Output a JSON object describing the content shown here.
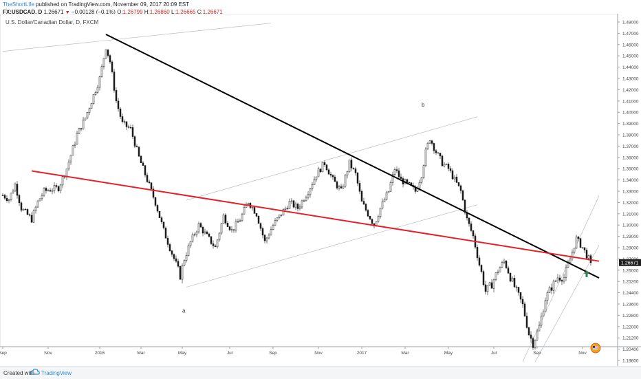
{
  "header": {
    "author": "TheShortLife",
    "published": "published on TradingView.com, November 09, 2017 20:09 EST",
    "symbol": "FX:USDCAD, D",
    "last": "1.26671",
    "change": "−0.00128 (−0.1%)",
    "o_label": "O:",
    "o_value": "1.26799",
    "h_label": "H:",
    "h_value": "1.26860",
    "l_label": "L:",
    "l_value": "1.26665",
    "c_label": "C:",
    "c_value": "1.26671"
  },
  "footer": {
    "created": "Created with",
    "brand": "TradingView"
  },
  "colors": {
    "trend_black": "#000000",
    "trend_red": "#e5202a",
    "channel": "#b8bcc3",
    "candle": "#1a1a1a",
    "arrow": "#2e7d4f",
    "last_price_bg": "#1f1f1f"
  },
  "chart_data": {
    "type": "candlestick",
    "title": "U.S. Dollar/Canadian Dollar, D, FXCM",
    "x_ticks": [
      "Sep",
      "Nov",
      "2016",
      "Mar",
      "May",
      "Jul",
      "Sep",
      "Nov",
      "2017",
      "Mar",
      "May",
      "Jul",
      "Sep",
      "Nov"
    ],
    "y_ticks": [
      "1.48000",
      "1.47000",
      "1.46000",
      "1.45000",
      "1.44000",
      "1.43000",
      "1.42000",
      "1.41000",
      "1.40000",
      "1.39000",
      "1.38000",
      "1.37000",
      "1.36000",
      "1.35000",
      "1.34000",
      "1.33000",
      "1.32000",
      "1.31000",
      "1.30000",
      "1.29000",
      "1.28000",
      "1.27000",
      "1.26000",
      "1.25200",
      "1.24400",
      "1.23600",
      "1.22800",
      "1.22000",
      "1.21200",
      "1.20400",
      "1.19600"
    ],
    "last_price": "1.26671",
    "annotations": [
      "a",
      "b"
    ],
    "close_path": [
      {
        "t": 0,
        "v": 1.3265
      },
      {
        "t": 3,
        "v": 1.323
      },
      {
        "t": 6,
        "v": 1.336
      },
      {
        "t": 9,
        "v": 1.315
      },
      {
        "t": 14,
        "v": 1.305
      },
      {
        "t": 17,
        "v": 1.3205
      },
      {
        "t": 20,
        "v": 1.33
      },
      {
        "t": 24,
        "v": 1.332
      },
      {
        "t": 27,
        "v": 1.333
      },
      {
        "t": 31,
        "v": 1.35
      },
      {
        "t": 36,
        "v": 1.38
      },
      {
        "t": 40,
        "v": 1.395
      },
      {
        "t": 44,
        "v": 1.415
      },
      {
        "t": 47,
        "v": 1.43
      },
      {
        "t": 50,
        "v": 1.458
      },
      {
        "t": 52,
        "v": 1.445
      },
      {
        "t": 55,
        "v": 1.41
      },
      {
        "t": 58,
        "v": 1.39
      },
      {
        "t": 62,
        "v": 1.385
      },
      {
        "t": 66,
        "v": 1.36
      },
      {
        "t": 70,
        "v": 1.34
      },
      {
        "t": 74,
        "v": 1.32
      },
      {
        "t": 78,
        "v": 1.295
      },
      {
        "t": 82,
        "v": 1.275
      },
      {
        "t": 86,
        "v": 1.256
      },
      {
        "t": 88,
        "v": 1.27
      },
      {
        "t": 91,
        "v": 1.285
      },
      {
        "t": 95,
        "v": 1.3
      },
      {
        "t": 99,
        "v": 1.29
      },
      {
        "t": 103,
        "v": 1.28
      },
      {
        "t": 107,
        "v": 1.308
      },
      {
        "t": 111,
        "v": 1.295
      },
      {
        "t": 115,
        "v": 1.305
      },
      {
        "t": 119,
        "v": 1.321
      },
      {
        "t": 123,
        "v": 1.31
      },
      {
        "t": 127,
        "v": 1.285
      },
      {
        "t": 131,
        "v": 1.3
      },
      {
        "t": 135,
        "v": 1.31
      },
      {
        "t": 139,
        "v": 1.32
      },
      {
        "t": 143,
        "v": 1.315
      },
      {
        "t": 148,
        "v": 1.33
      },
      {
        "t": 152,
        "v": 1.345
      },
      {
        "t": 156,
        "v": 1.355
      },
      {
        "t": 160,
        "v": 1.34
      },
      {
        "t": 164,
        "v": 1.33
      },
      {
        "t": 168,
        "v": 1.355
      },
      {
        "t": 171,
        "v": 1.345
      },
      {
        "t": 174,
        "v": 1.32
      },
      {
        "t": 177,
        "v": 1.31
      },
      {
        "t": 180,
        "v": 1.3
      },
      {
        "t": 183,
        "v": 1.315
      },
      {
        "t": 187,
        "v": 1.33
      },
      {
        "t": 190,
        "v": 1.35
      },
      {
        "t": 193,
        "v": 1.34
      },
      {
        "t": 197,
        "v": 1.335
      },
      {
        "t": 200,
        "v": 1.33
      },
      {
        "t": 203,
        "v": 1.345
      },
      {
        "t": 205,
        "v": 1.365
      },
      {
        "t": 207,
        "v": 1.377
      },
      {
        "t": 210,
        "v": 1.365
      },
      {
        "t": 213,
        "v": 1.355
      },
      {
        "t": 216,
        "v": 1.35
      },
      {
        "t": 219,
        "v": 1.34
      },
      {
        "t": 222,
        "v": 1.33
      },
      {
        "t": 225,
        "v": 1.305
      },
      {
        "t": 228,
        "v": 1.29
      },
      {
        "t": 231,
        "v": 1.265
      },
      {
        "t": 234,
        "v": 1.245
      },
      {
        "t": 237,
        "v": 1.25
      },
      {
        "t": 240,
        "v": 1.26
      },
      {
        "t": 243,
        "v": 1.268
      },
      {
        "t": 246,
        "v": 1.255
      },
      {
        "t": 249,
        "v": 1.245
      },
      {
        "t": 252,
        "v": 1.235
      },
      {
        "t": 255,
        "v": 1.215
      },
      {
        "t": 257,
        "v": 1.208
      },
      {
        "t": 260,
        "v": 1.22
      },
      {
        "t": 263,
        "v": 1.24
      },
      {
        "t": 266,
        "v": 1.248
      },
      {
        "t": 269,
        "v": 1.255
      },
      {
        "t": 272,
        "v": 1.255
      },
      {
        "t": 275,
        "v": 1.27
      },
      {
        "t": 278,
        "v": 1.288
      },
      {
        "t": 281,
        "v": 1.28
      },
      {
        "t": 284,
        "v": 1.27
      },
      {
        "t": 285,
        "v": 1.26671
      }
    ],
    "trendlines": [
      {
        "name": "black",
        "from": {
          "t": 50,
          "v": 1.469
        },
        "to": {
          "t": 289,
          "v": 1.2545
        }
      },
      {
        "name": "red",
        "from": {
          "t": 14,
          "v": 1.348
        },
        "to": {
          "t": 289,
          "v": 1.268
        }
      }
    ],
    "channels": [
      {
        "from": {
          "t": 0,
          "v": 1.454
        },
        "to": {
          "t": 130,
          "v": 1.479
        }
      },
      {
        "from": {
          "t": 89,
          "v": 1.322
        },
        "to": {
          "t": 230,
          "v": 1.396
        }
      },
      {
        "from": {
          "t": 89,
          "v": 1.248
        },
        "to": {
          "t": 230,
          "v": 1.318
        }
      },
      {
        "from": {
          "t": 252,
          "v": 1.195
        },
        "to": {
          "t": 289,
          "v": 1.326
        }
      },
      {
        "from": {
          "t": 258,
          "v": 1.195
        },
        "to": {
          "t": 289,
          "v": 1.282
        }
      }
    ],
    "arrow": {
      "t": 283,
      "v": 1.2575,
      "direction": "up"
    },
    "annotation_points": [
      {
        "label": "a",
        "t": 87,
        "v": 1.23
      },
      {
        "label": "b",
        "t": 203,
        "v": 1.405
      }
    ]
  }
}
